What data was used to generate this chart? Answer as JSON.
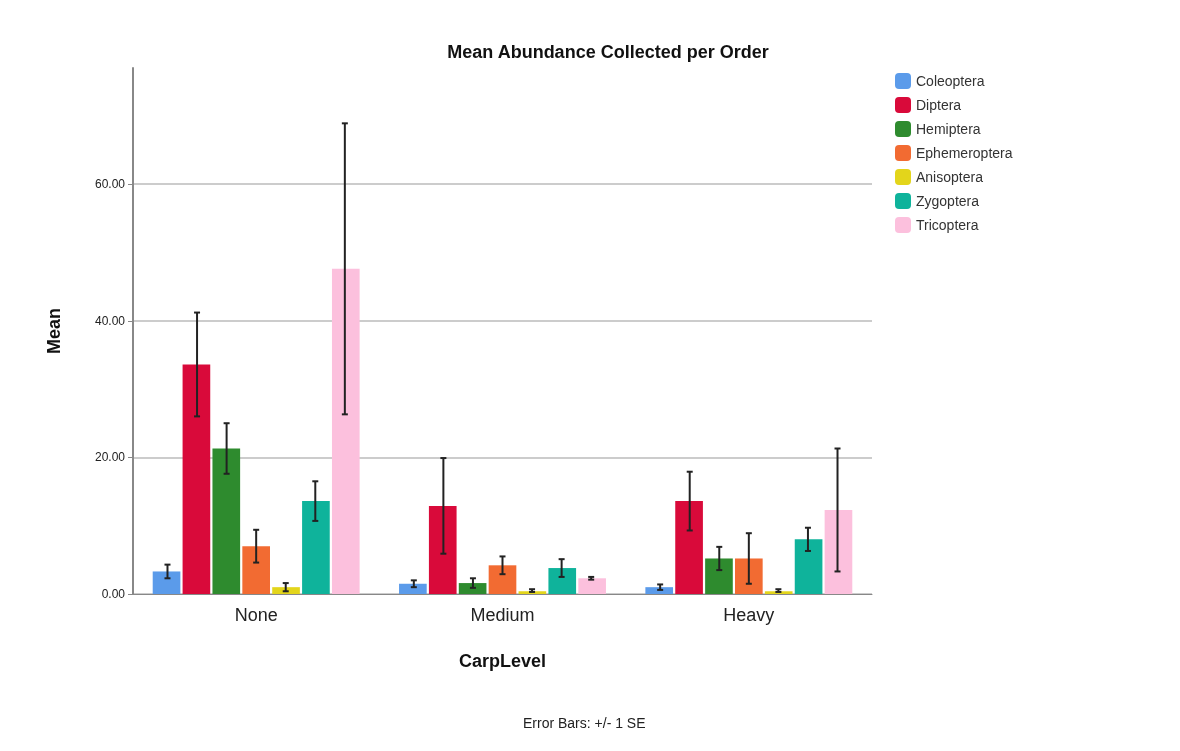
{
  "chart_data": {
    "type": "bar",
    "title": "Mean Abundance Collected per Order",
    "xlabel": "CarpLevel",
    "ylabel": "Mean",
    "annotations": [
      "Error Bars: +/- 1 SE"
    ],
    "categories": [
      "None",
      "Medium",
      "Heavy"
    ],
    "series": [
      {
        "name": "Coleoptera",
        "color": "#5b9bea",
        "values": [
          3.3,
          1.5,
          1.0
        ],
        "errors": [
          1.0,
          0.5,
          0.4
        ]
      },
      {
        "name": "Diptera",
        "color": "#d90a3a",
        "values": [
          33.6,
          12.9,
          13.6
        ],
        "errors": [
          7.6,
          7.0,
          4.3
        ]
      },
      {
        "name": "Hemiptera",
        "color": "#2e8b2e",
        "values": [
          21.3,
          1.6,
          5.2
        ],
        "errors": [
          3.7,
          0.7,
          1.7
        ]
      },
      {
        "name": "Ephemeroptera",
        "color": "#f26b32",
        "values": [
          7.0,
          4.2,
          5.2
        ],
        "errors": [
          2.4,
          1.3,
          3.7
        ]
      },
      {
        "name": "Anisoptera",
        "color": "#e3d51b",
        "values": [
          1.0,
          0.4,
          0.4
        ],
        "errors": [
          0.6,
          [
            0.3,
            0.7
          ],
          [
            0.3,
            0.7
          ]
        ]
      },
      {
        "name": "Zygoptera",
        "color": "#0fb39b",
        "values": [
          13.6,
          3.8,
          8.0
        ],
        "errors": [
          2.9,
          1.3,
          1.7
        ]
      },
      {
        "name": "Tricoptera",
        "color": "#fcc0dd",
        "values": [
          47.6,
          2.3,
          12.3
        ],
        "errors": [
          21.3,
          0.2,
          9.0
        ]
      }
    ],
    "ylim": [
      0,
      77
    ],
    "yticks": [
      {
        "value": 0,
        "label": "0.00"
      },
      {
        "value": 20,
        "label": "20.00"
      },
      {
        "value": 40,
        "label": "40.00"
      },
      {
        "value": 60,
        "label": "60.00"
      }
    ],
    "grid": "y",
    "legend": "top right"
  }
}
